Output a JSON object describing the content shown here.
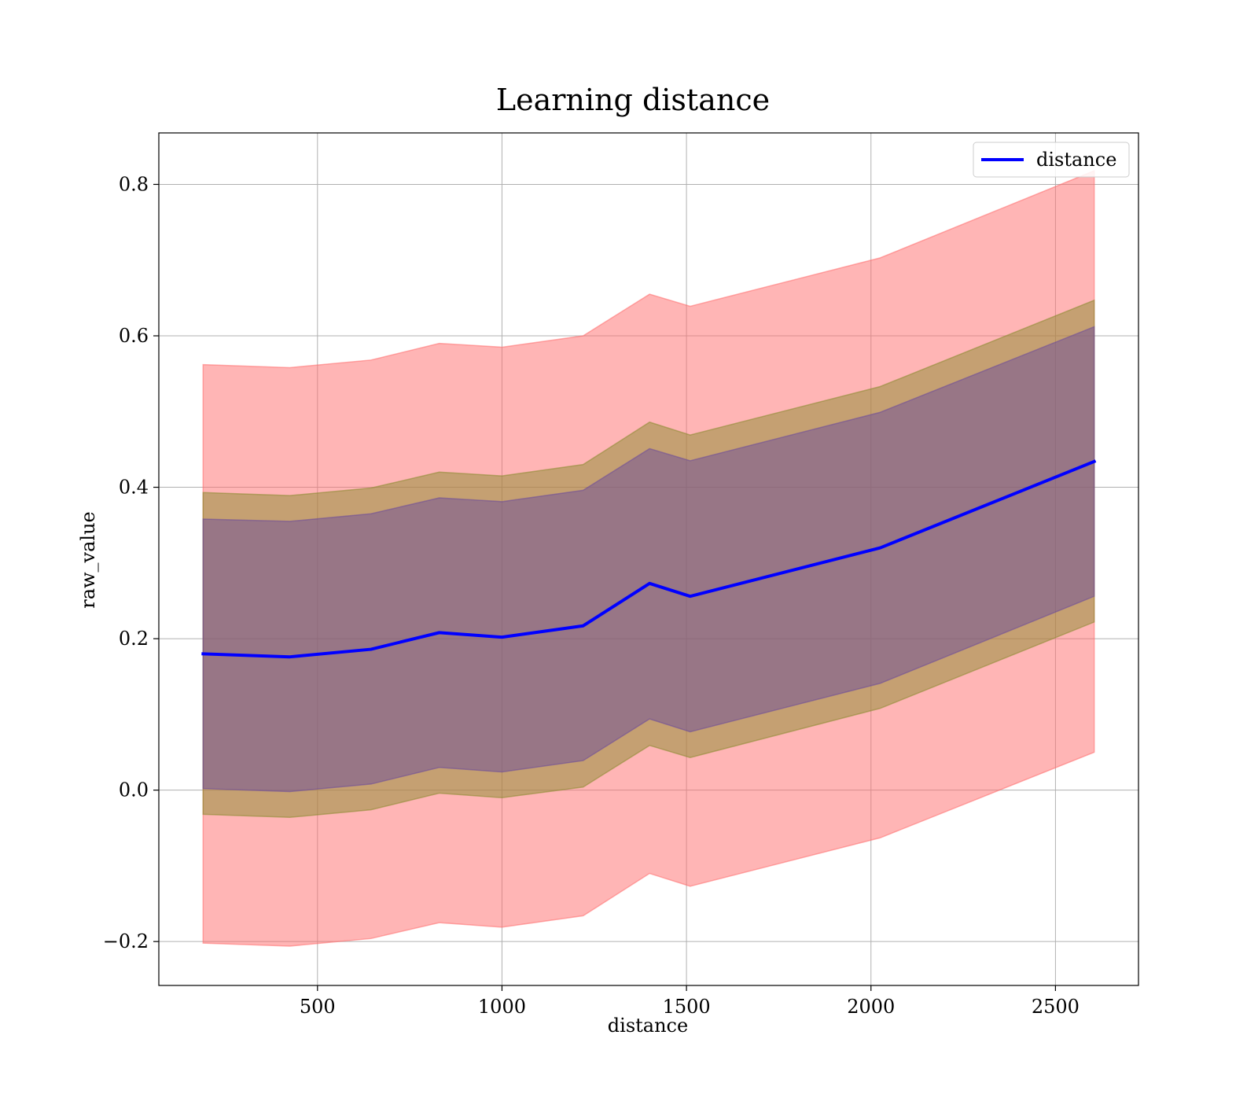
{
  "chart_data": {
    "type": "line",
    "title": "Learning distance",
    "xlabel": "distance",
    "ylabel": "raw_value",
    "xlim": [
      70,
      2725
    ],
    "ylim": [
      -0.258,
      0.868
    ],
    "xticks": [
      500,
      1000,
      1500,
      2000,
      2500
    ],
    "xtick_labels": [
      "500",
      "1000",
      "1500",
      "2000",
      "2500"
    ],
    "yticks": [
      -0.2,
      0.0,
      0.2,
      0.4,
      0.6,
      0.8
    ],
    "ytick_labels": [
      "−0.2",
      "0.0",
      "0.2",
      "0.4",
      "0.6",
      "0.8"
    ],
    "grid": true,
    "legend_position": "top-right",
    "x": [
      190,
      425,
      645,
      830,
      1000,
      1220,
      1400,
      1510,
      2025,
      2605
    ],
    "series": [
      {
        "name": "distance",
        "color": "#0000ff",
        "values": [
          0.18,
          0.176,
          0.186,
          0.208,
          0.202,
          0.217,
          0.273,
          0.256,
          0.32,
          0.434
        ]
      }
    ],
    "bands": [
      {
        "role": "outer",
        "color": "#ff6b6b",
        "lower": [
          -0.202,
          -0.206,
          -0.196,
          -0.175,
          -0.181,
          -0.166,
          -0.11,
          -0.127,
          -0.063,
          0.05
        ],
        "upper": [
          0.562,
          0.558,
          0.568,
          0.59,
          0.585,
          0.6,
          0.655,
          0.639,
          0.703,
          0.818
        ]
      },
      {
        "role": "inner-a",
        "color": "#8b8b2f",
        "lower": [
          -0.032,
          -0.036,
          -0.026,
          -0.004,
          -0.01,
          0.004,
          0.059,
          0.043,
          0.108,
          0.222
        ],
        "upper": [
          0.393,
          0.389,
          0.399,
          0.42,
          0.415,
          0.43,
          0.486,
          0.469,
          0.533,
          0.647
        ]
      },
      {
        "role": "inner-b",
        "color": "#6b4b9a",
        "lower": [
          0.002,
          -0.002,
          0.008,
          0.03,
          0.024,
          0.039,
          0.094,
          0.077,
          0.141,
          0.256
        ],
        "upper": [
          0.358,
          0.355,
          0.365,
          0.386,
          0.381,
          0.396,
          0.451,
          0.435,
          0.499,
          0.612
        ]
      }
    ]
  }
}
